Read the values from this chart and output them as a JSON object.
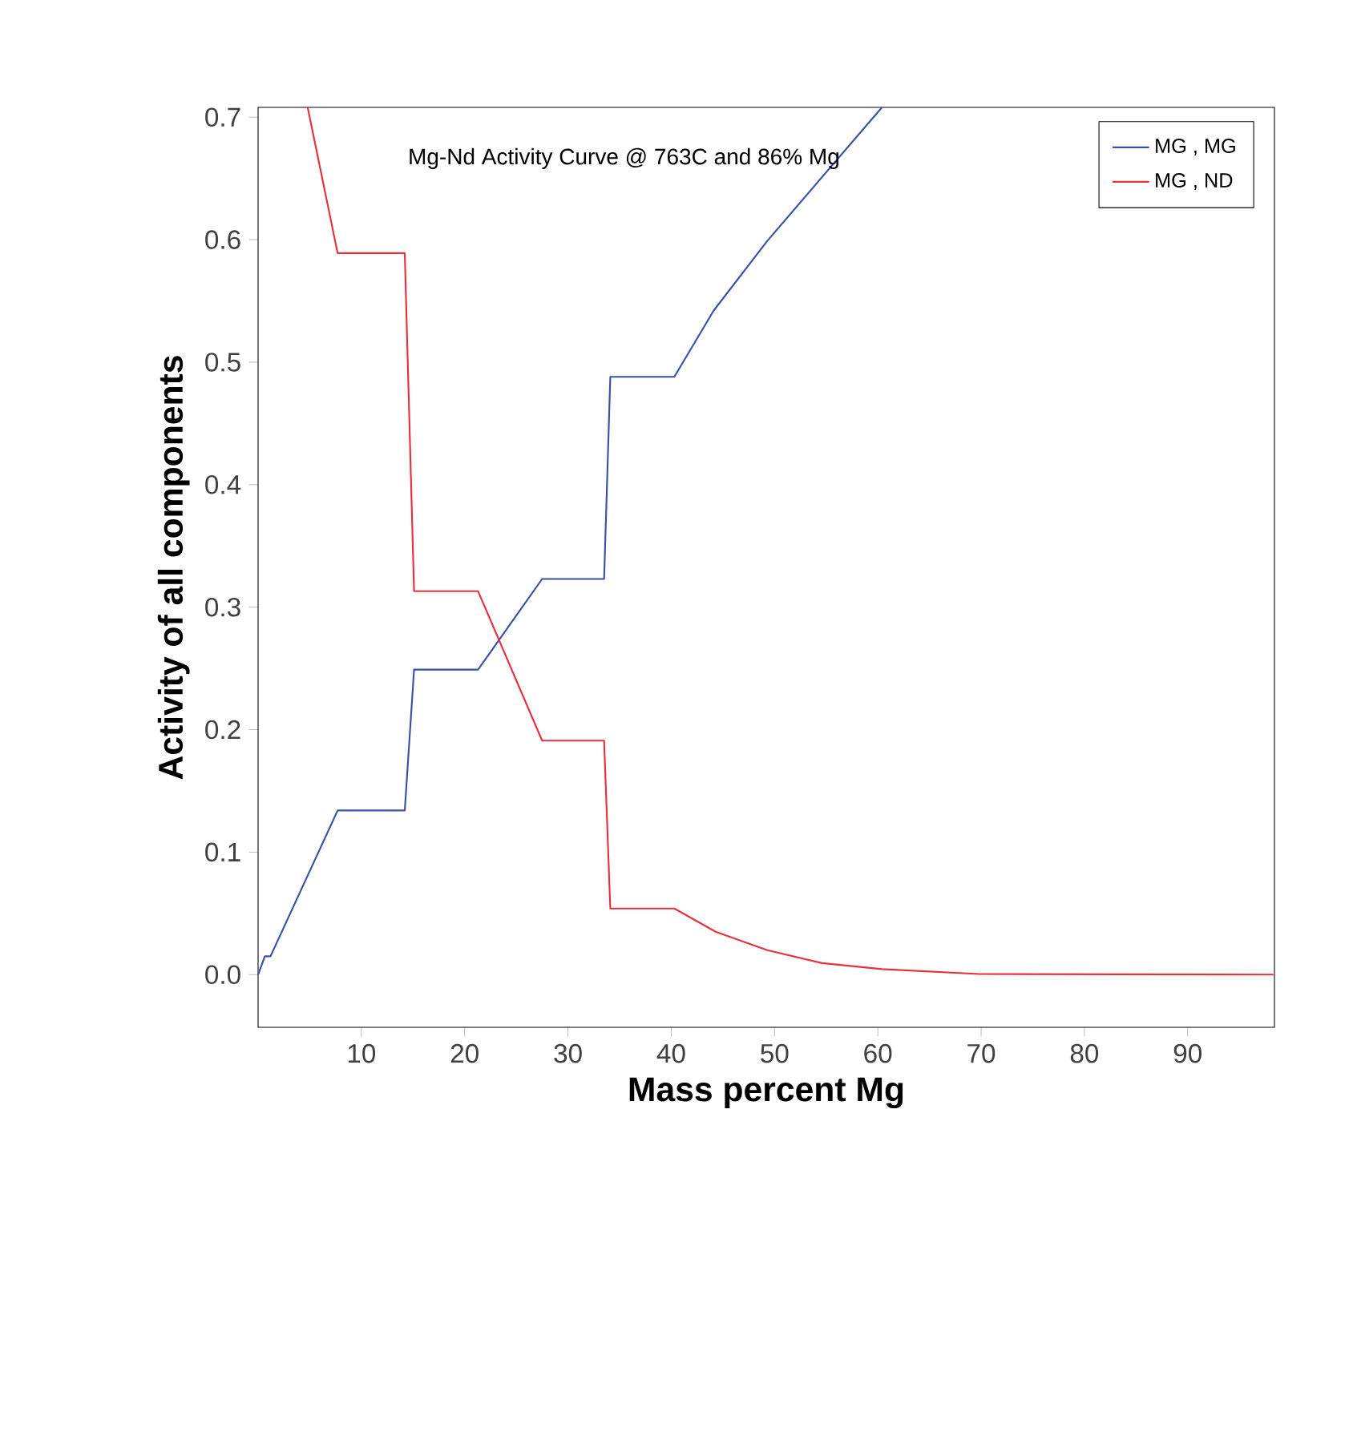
{
  "chart_data": {
    "type": "line",
    "title": "Mg-Nd Activity Curve @ 763C and 86% Mg",
    "xlabel": "Mass percent Mg",
    "ylabel": "Activity of all components",
    "xlim": [
      0,
      98.4
    ],
    "ylim": [
      -0.043,
      0.708
    ],
    "xticks": [
      10,
      20,
      30,
      40,
      50,
      60,
      70,
      80,
      90
    ],
    "yticks": [
      {
        "value": 0,
        "label": "0.0"
      },
      {
        "value": 0.1,
        "label": "0.1"
      },
      {
        "value": 0.2,
        "label": "0.2"
      },
      {
        "value": 0.3,
        "label": "0.3"
      },
      {
        "value": 0.4,
        "label": "0.4"
      },
      {
        "value": 0.5,
        "label": "0.5"
      },
      {
        "value": 0.6,
        "label": "0.6"
      },
      {
        "value": 0.7,
        "label": "0.7"
      }
    ],
    "grid": false,
    "legend": "top right",
    "line_style": "solid",
    "marker": "none",
    "series": [
      {
        "name": "MG , MG",
        "color": "#3a4fa8",
        "x": [
          0,
          0.65,
          1.2,
          7.7,
          14.2,
          15.1,
          21.3,
          27.5,
          33.5,
          34.1,
          40.3,
          44.1,
          49.3,
          60.4
        ],
        "values": [
          0,
          0.015,
          0.015,
          0.134,
          0.134,
          0.249,
          0.249,
          0.323,
          0.323,
          0.488,
          0.488,
          0.542,
          0.599,
          0.708
        ]
      },
      {
        "name": "MG , ND",
        "color": "#e8303c",
        "x": [
          4.8,
          7.7,
          14.2,
          15.1,
          21.3,
          27.5,
          33.5,
          34.1,
          40.3,
          44.3,
          49.3,
          54.6,
          60.4,
          69.8,
          98.3
        ],
        "values": [
          0.708,
          0.589,
          0.589,
          0.313,
          0.313,
          0.191,
          0.191,
          0.054,
          0.054,
          0.035,
          0.02,
          0.0094,
          0.0045,
          0.0005,
          0
        ]
      }
    ]
  }
}
